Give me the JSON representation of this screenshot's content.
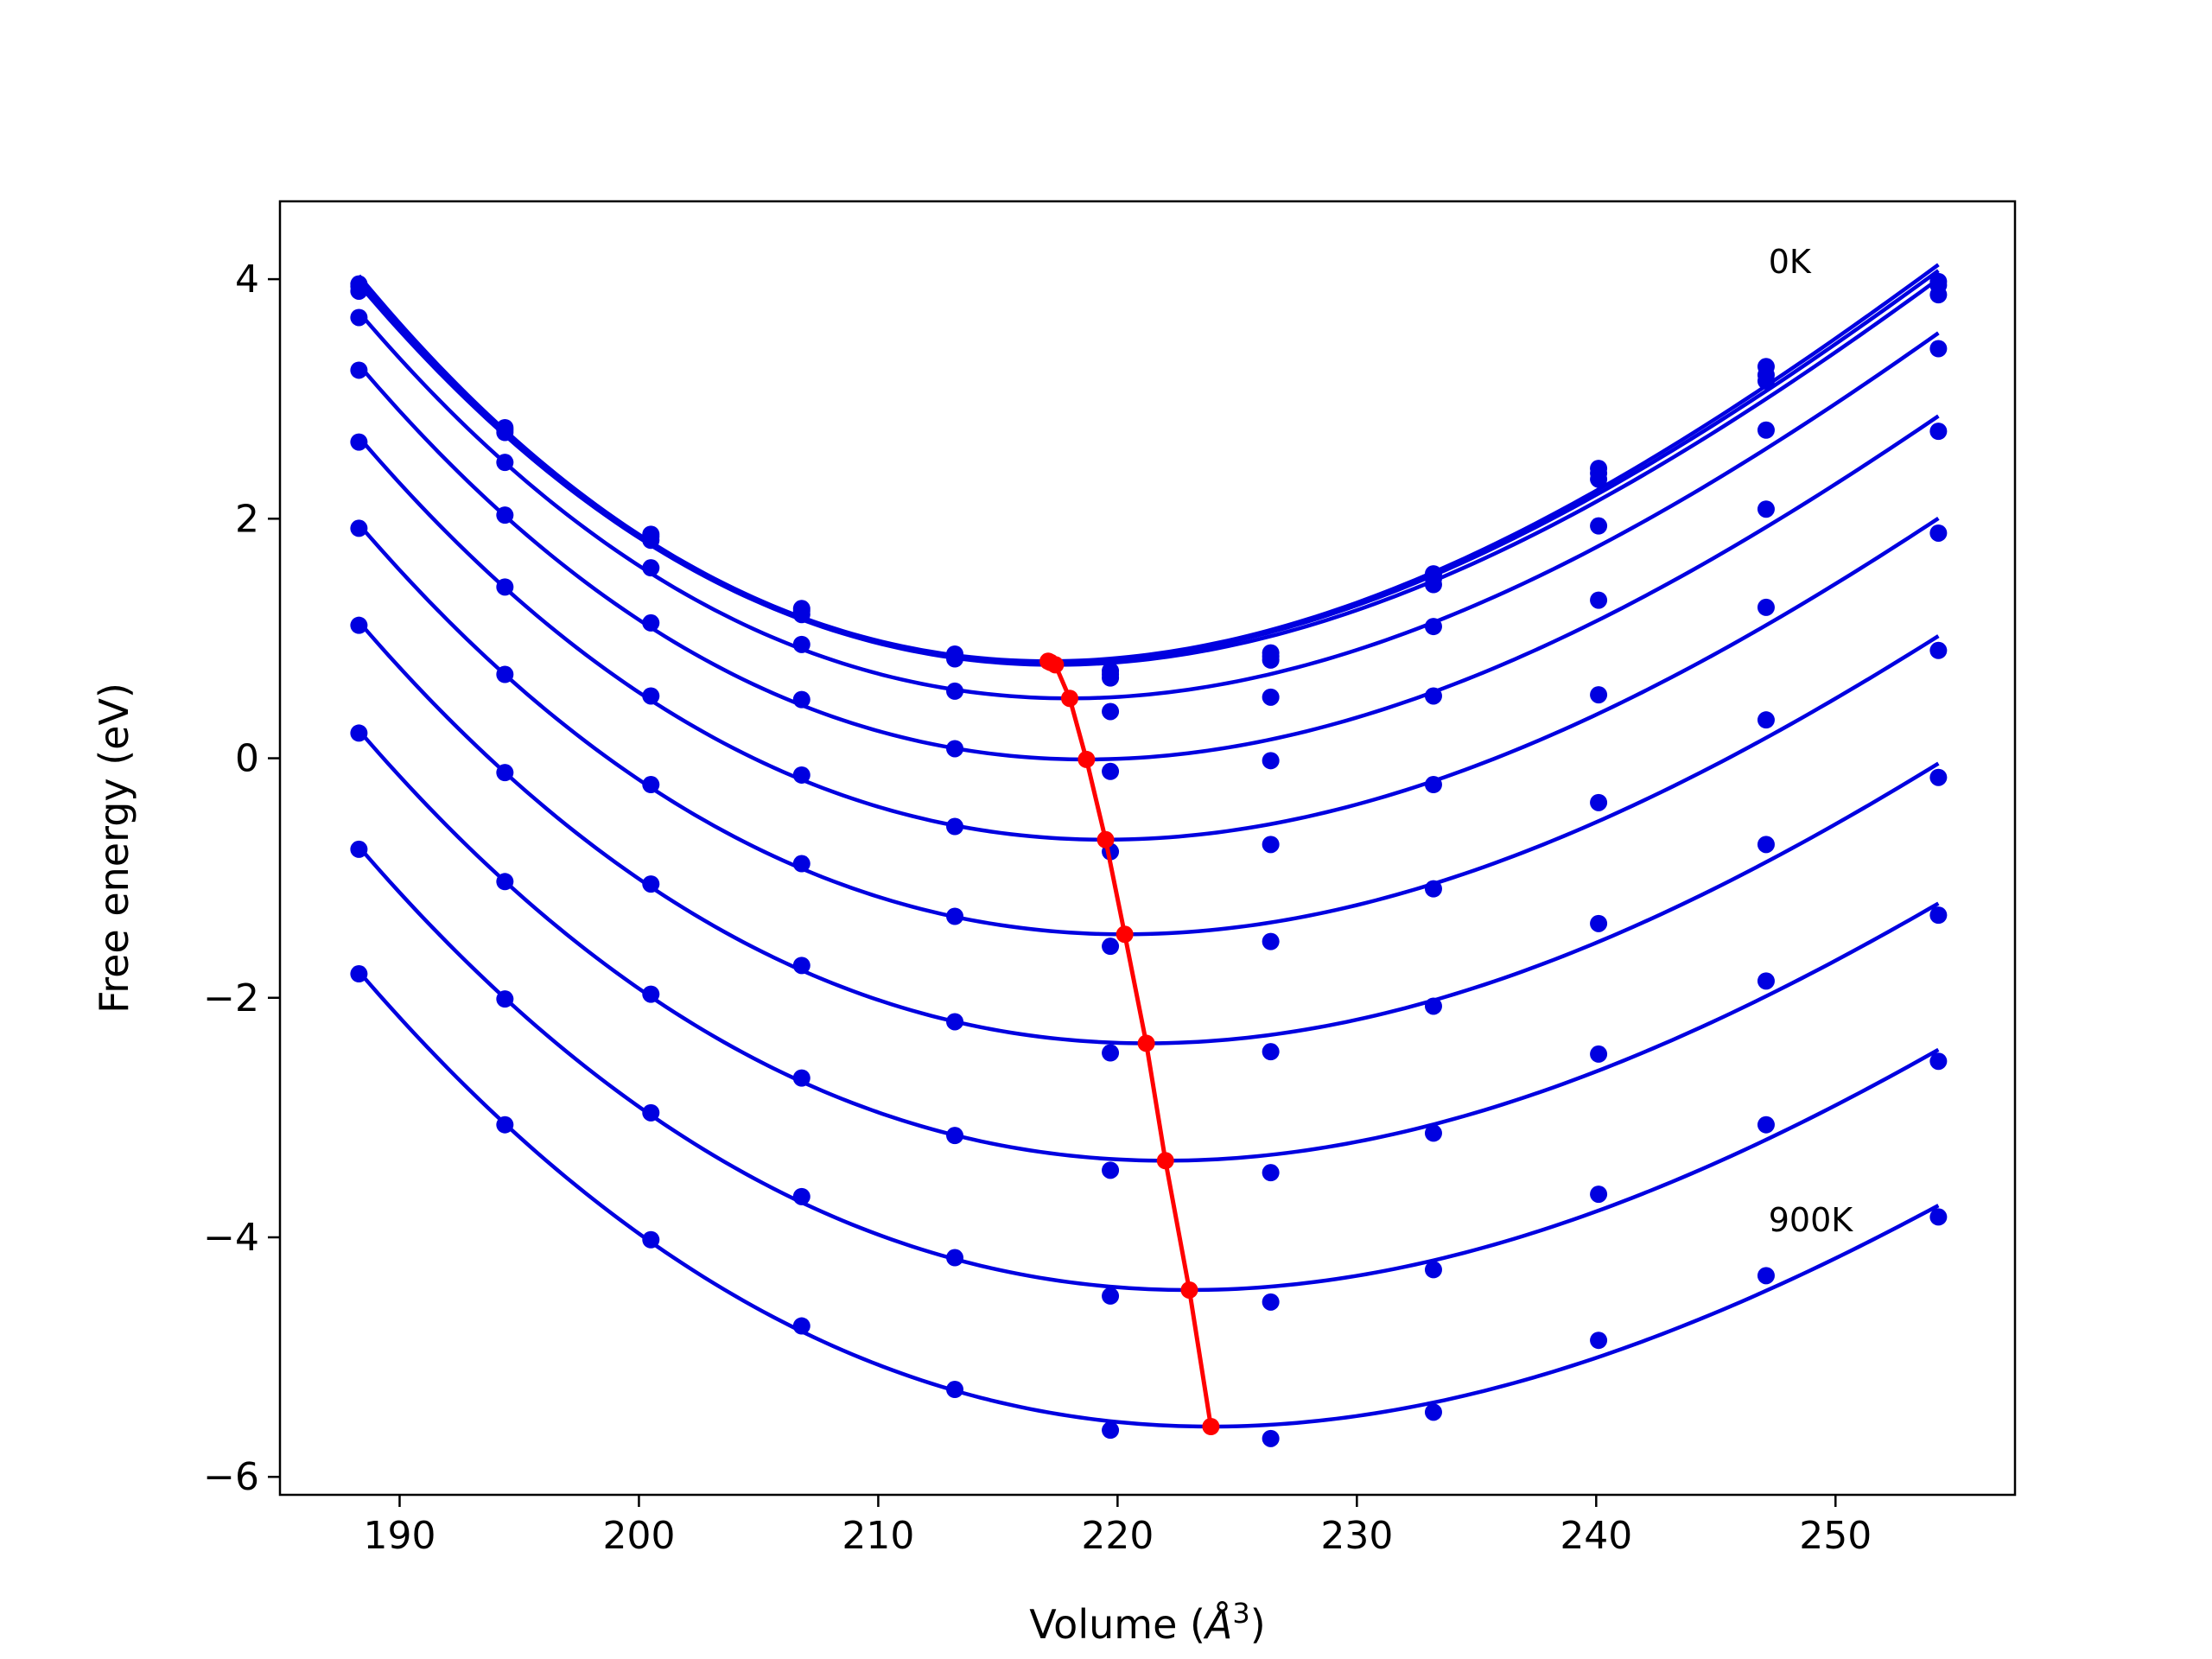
{
  "chart_data": {
    "type": "scatter",
    "xlabel": "Volume (",
    "xlabel_symbol": "Å",
    "xlabel_exponent": "3",
    "xlabel_close": ")",
    "ylabel": "Free energy (eV)",
    "xlim": [
      185.0,
      257.5
    ],
    "ylim": [
      -6.15,
      4.65
    ],
    "xticks": [
      190,
      200,
      210,
      220,
      230,
      240,
      250
    ],
    "yticks": [
      -6,
      -4,
      -2,
      0,
      2,
      4
    ],
    "xtick_labels": [
      "190",
      "200",
      "210",
      "220",
      "230",
      "240",
      "250"
    ],
    "ytick_labels": [
      "−6",
      "−4",
      "−2",
      "0",
      "2",
      "4"
    ],
    "grid": false,
    "volumes": [
      188.3,
      194.4,
      200.5,
      206.8,
      213.2,
      219.7,
      226.4,
      233.2,
      240.1,
      247.1,
      254.3
    ],
    "series": [
      {
        "values": [
          3.96,
          2.76,
          1.87,
          1.25,
          0.87,
          0.73,
          0.88,
          1.54,
          2.42,
          3.27,
          3.98
        ],
        "fit_min": [
          217.1,
          0.81
        ]
      },
      {
        "values": [
          3.94,
          2.74,
          1.85,
          1.23,
          0.85,
          0.7,
          0.85,
          1.5,
          2.38,
          3.2,
          3.95
        ],
        "fit_min": [
          217.2,
          0.8
        ]
      },
      {
        "values": [
          3.9,
          2.72,
          1.82,
          1.2,
          0.83,
          0.67,
          0.82,
          1.45,
          2.33,
          3.15,
          3.87
        ],
        "fit_min": [
          217.4,
          0.78
        ]
      },
      {
        "values": [
          3.68,
          2.47,
          1.59,
          0.95,
          0.56,
          0.39,
          0.51,
          1.1,
          1.94,
          2.74,
          3.42
        ],
        "fit_min": [
          218.0,
          0.5
        ]
      },
      {
        "values": [
          3.24,
          2.03,
          1.13,
          0.49,
          0.08,
          -0.11,
          -0.02,
          0.52,
          1.32,
          2.08,
          2.73
        ],
        "fit_min": [
          218.7,
          -0.01
        ]
      },
      {
        "values": [
          2.64,
          1.43,
          0.52,
          -0.14,
          -0.57,
          -0.78,
          -0.72,
          -0.22,
          0.53,
          1.26,
          1.88
        ],
        "fit_min": [
          219.5,
          -0.68
        ]
      },
      {
        "values": [
          1.92,
          0.7,
          -0.22,
          -0.88,
          -1.32,
          -1.57,
          -1.53,
          -1.09,
          -0.37,
          0.32,
          0.9
        ],
        "fit_min": [
          220.3,
          -1.47
        ]
      },
      {
        "values": [
          1.11,
          -0.12,
          -1.05,
          -1.73,
          -2.2,
          -2.46,
          -2.45,
          -2.07,
          -1.38,
          -0.72,
          -0.16
        ],
        "fit_min": [
          221.2,
          -2.38
        ]
      },
      {
        "values": [
          0.21,
          -1.03,
          -1.97,
          -2.67,
          -3.15,
          -3.44,
          -3.46,
          -3.13,
          -2.47,
          -1.86,
          -1.31
        ],
        "fit_min": [
          222.0,
          -3.36
        ]
      },
      {
        "values": [
          -0.76,
          -2.01,
          -2.96,
          -3.66,
          -4.17,
          -4.49,
          -4.54,
          -4.27,
          -3.64,
          -3.06,
          -2.53
        ],
        "fit_min": [
          223.0,
          -4.44
        ]
      },
      {
        "values": [
          -1.8,
          -3.06,
          -4.02,
          -4.74,
          -5.27,
          -5.61,
          -5.68,
          -5.46,
          -4.86,
          -4.32,
          -3.83
        ],
        "fit_min": [
          223.9,
          -5.58
        ]
      }
    ],
    "annotations": [
      {
        "text": "0K",
        "x": 247.2,
        "y": 4.05
      },
      {
        "text": "900K",
        "x": 247.2,
        "y": -3.95
      }
    ],
    "colors": {
      "points": "#0000e0",
      "fits": "#0000e0",
      "minima": "#ff0000",
      "axes": "#000000"
    }
  }
}
